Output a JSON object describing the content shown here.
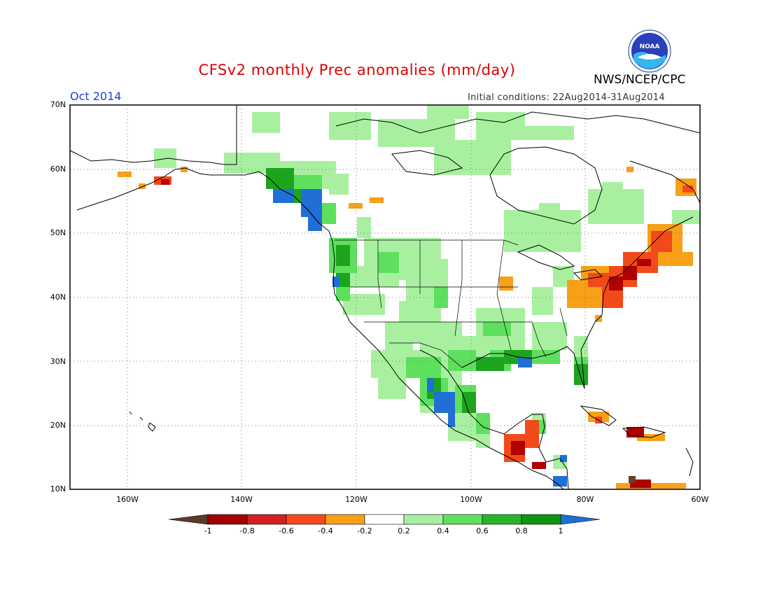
{
  "header": {
    "title": "CFSv2 monthly Prec anomalies (mm/day)",
    "org": "NWS/NCEP/CPC",
    "month": "Oct 2014",
    "init_conditions": "Initial conditions: 22Aug2014-31Aug2014",
    "logo_text": "NOAA"
  },
  "axes": {
    "lat_labels": [
      "70N",
      "60N",
      "50N",
      "40N",
      "30N",
      "20N",
      "10N"
    ],
    "lon_labels": [
      "160W",
      "140W",
      "120W",
      "100W",
      "80W",
      "60W"
    ]
  },
  "colorbar": {
    "labels": [
      "-1",
      "-0.8",
      "-0.6",
      "-0.4",
      "-0.2",
      "0.2",
      "0.4",
      "0.6",
      "0.8",
      "1"
    ],
    "colors": [
      "#5a3a28",
      "#a30000",
      "#d42020",
      "#f24a1a",
      "#f7a018",
      "#ffffff",
      "#a8f0a0",
      "#5ee05e",
      "#28b428",
      "#0e960e",
      "#1f6fd6"
    ]
  },
  "map": {
    "projection": "lat-lon",
    "lon_range": [
      -170,
      -60
    ],
    "lat_range": [
      10,
      70
    ],
    "colors": {
      "coast": "#000000",
      "grid": "#666666"
    }
  }
}
